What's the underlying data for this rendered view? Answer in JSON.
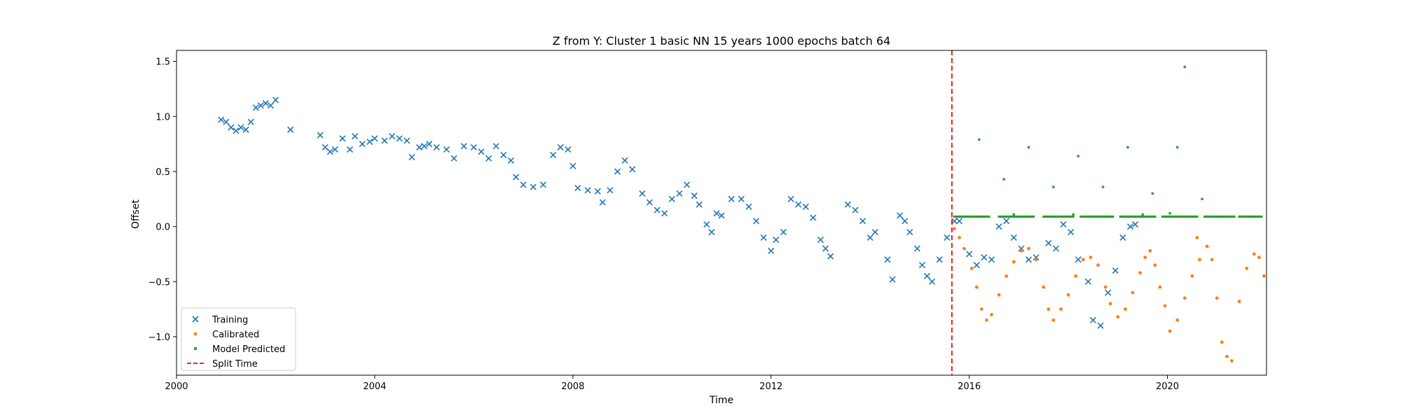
{
  "chart_data": {
    "type": "scatter",
    "title": "Z from Y: Cluster 1 basic NN 15 years 1000 epochs batch 64",
    "xlabel": "Time",
    "ylabel": "Offset",
    "xlim": [
      2000.0,
      2022.0
    ],
    "ylim": [
      -1.35,
      1.6
    ],
    "x_ticks": [
      2000,
      2004,
      2008,
      2012,
      2016,
      2020
    ],
    "y_ticks": [
      -1.0,
      -0.5,
      0.0,
      0.5,
      1.0,
      1.5
    ],
    "y_tick_labels": [
      "−1.0",
      "−0.5",
      "0.0",
      "0.5",
      "1.0",
      "1.5"
    ],
    "legend_position": "lower-left",
    "split_time": 2015.65,
    "series": [
      {
        "name": "Training",
        "marker": "x",
        "color": "#1f77b4",
        "points": [
          [
            2000.9,
            0.97
          ],
          [
            2001.0,
            0.95
          ],
          [
            2001.1,
            0.9
          ],
          [
            2001.2,
            0.87
          ],
          [
            2001.3,
            0.9
          ],
          [
            2001.4,
            0.88
          ],
          [
            2001.5,
            0.95
          ],
          [
            2001.6,
            1.08
          ],
          [
            2001.7,
            1.1
          ],
          [
            2001.8,
            1.12
          ],
          [
            2001.9,
            1.1
          ],
          [
            2002.0,
            1.15
          ],
          [
            2002.3,
            0.88
          ],
          [
            2002.9,
            0.83
          ],
          [
            2003.0,
            0.72
          ],
          [
            2003.1,
            0.68
          ],
          [
            2003.2,
            0.7
          ],
          [
            2003.35,
            0.8
          ],
          [
            2003.5,
            0.7
          ],
          [
            2003.6,
            0.82
          ],
          [
            2003.75,
            0.75
          ],
          [
            2003.9,
            0.77
          ],
          [
            2004.0,
            0.8
          ],
          [
            2004.2,
            0.78
          ],
          [
            2004.35,
            0.82
          ],
          [
            2004.5,
            0.8
          ],
          [
            2004.65,
            0.78
          ],
          [
            2004.75,
            0.63
          ],
          [
            2004.9,
            0.72
          ],
          [
            2005.0,
            0.73
          ],
          [
            2005.1,
            0.75
          ],
          [
            2005.25,
            0.72
          ],
          [
            2005.45,
            0.7
          ],
          [
            2005.6,
            0.62
          ],
          [
            2005.8,
            0.73
          ],
          [
            2006.0,
            0.72
          ],
          [
            2006.15,
            0.68
          ],
          [
            2006.3,
            0.62
          ],
          [
            2006.45,
            0.73
          ],
          [
            2006.6,
            0.65
          ],
          [
            2006.75,
            0.6
          ],
          [
            2006.85,
            0.45
          ],
          [
            2007.0,
            0.38
          ],
          [
            2007.2,
            0.36
          ],
          [
            2007.4,
            0.38
          ],
          [
            2007.6,
            0.65
          ],
          [
            2007.75,
            0.72
          ],
          [
            2007.9,
            0.7
          ],
          [
            2008.0,
            0.55
          ],
          [
            2008.1,
            0.35
          ],
          [
            2008.3,
            0.33
          ],
          [
            2008.5,
            0.32
          ],
          [
            2008.6,
            0.22
          ],
          [
            2008.75,
            0.33
          ],
          [
            2008.9,
            0.5
          ],
          [
            2009.05,
            0.6
          ],
          [
            2009.2,
            0.52
          ],
          [
            2009.4,
            0.3
          ],
          [
            2009.55,
            0.22
          ],
          [
            2009.7,
            0.15
          ],
          [
            2009.85,
            0.12
          ],
          [
            2010.0,
            0.25
          ],
          [
            2010.15,
            0.3
          ],
          [
            2010.3,
            0.38
          ],
          [
            2010.45,
            0.28
          ],
          [
            2010.55,
            0.2
          ],
          [
            2010.7,
            0.02
          ],
          [
            2010.8,
            -0.05
          ],
          [
            2010.9,
            0.12
          ],
          [
            2011.0,
            0.1
          ],
          [
            2011.2,
            0.25
          ],
          [
            2011.4,
            0.25
          ],
          [
            2011.55,
            0.18
          ],
          [
            2011.7,
            0.05
          ],
          [
            2011.85,
            -0.1
          ],
          [
            2012.0,
            -0.22
          ],
          [
            2012.1,
            -0.12
          ],
          [
            2012.25,
            -0.05
          ],
          [
            2012.4,
            0.25
          ],
          [
            2012.55,
            0.2
          ],
          [
            2012.7,
            0.18
          ],
          [
            2012.85,
            0.08
          ],
          [
            2013.0,
            -0.12
          ],
          [
            2013.1,
            -0.2
          ],
          [
            2013.2,
            -0.27
          ],
          [
            2013.55,
            0.2
          ],
          [
            2013.7,
            0.15
          ],
          [
            2013.85,
            0.05
          ],
          [
            2014.0,
            -0.1
          ],
          [
            2014.1,
            -0.05
          ],
          [
            2014.35,
            -0.3
          ],
          [
            2014.45,
            -0.48
          ],
          [
            2014.6,
            0.1
          ],
          [
            2014.7,
            0.05
          ],
          [
            2014.8,
            -0.05
          ],
          [
            2014.95,
            -0.2
          ],
          [
            2015.05,
            -0.35
          ],
          [
            2015.15,
            -0.45
          ],
          [
            2015.25,
            -0.5
          ],
          [
            2015.4,
            -0.3
          ],
          [
            2015.55,
            -0.1
          ],
          [
            2015.7,
            0.05
          ],
          [
            2015.8,
            0.05
          ],
          [
            2016.0,
            -0.25
          ],
          [
            2016.15,
            -0.35
          ],
          [
            2016.3,
            -0.28
          ],
          [
            2016.45,
            -0.3
          ],
          [
            2016.6,
            0.0
          ],
          [
            2016.75,
            0.05
          ],
          [
            2016.9,
            -0.1
          ],
          [
            2017.05,
            -0.2
          ],
          [
            2017.2,
            -0.3
          ],
          [
            2017.35,
            -0.28
          ],
          [
            2017.6,
            -0.15
          ],
          [
            2017.75,
            -0.2
          ],
          [
            2017.9,
            0.02
          ],
          [
            2018.05,
            -0.05
          ],
          [
            2018.2,
            -0.3
          ],
          [
            2018.4,
            -0.5
          ],
          [
            2018.5,
            -0.85
          ],
          [
            2018.65,
            -0.9
          ],
          [
            2018.8,
            -0.6
          ],
          [
            2018.95,
            -0.4
          ],
          [
            2019.1,
            -0.1
          ],
          [
            2019.25,
            0.0
          ],
          [
            2019.35,
            0.02
          ]
        ]
      },
      {
        "name": "Calibrated",
        "marker": "point",
        "color": "#ff7f0e",
        "points": [
          [
            2015.7,
            -0.02
          ],
          [
            2015.8,
            -0.1
          ],
          [
            2015.9,
            -0.2
          ],
          [
            2016.05,
            -0.38
          ],
          [
            2016.15,
            -0.55
          ],
          [
            2016.25,
            -0.75
          ],
          [
            2016.35,
            -0.85
          ],
          [
            2016.45,
            -0.8
          ],
          [
            2016.6,
            -0.62
          ],
          [
            2016.75,
            -0.45
          ],
          [
            2016.9,
            -0.32
          ],
          [
            2017.05,
            -0.22
          ],
          [
            2017.2,
            -0.2
          ],
          [
            2017.35,
            -0.3
          ],
          [
            2017.5,
            -0.55
          ],
          [
            2017.6,
            -0.75
          ],
          [
            2017.7,
            -0.85
          ],
          [
            2017.85,
            -0.75
          ],
          [
            2018.0,
            -0.62
          ],
          [
            2018.15,
            -0.45
          ],
          [
            2018.3,
            -0.3
          ],
          [
            2018.45,
            -0.28
          ],
          [
            2018.6,
            -0.35
          ],
          [
            2018.75,
            -0.55
          ],
          [
            2018.85,
            -0.7
          ],
          [
            2019.0,
            -0.82
          ],
          [
            2019.15,
            -0.75
          ],
          [
            2019.3,
            -0.6
          ],
          [
            2019.45,
            -0.42
          ],
          [
            2019.55,
            -0.28
          ],
          [
            2019.65,
            -0.22
          ],
          [
            2019.75,
            -0.35
          ],
          [
            2019.85,
            -0.55
          ],
          [
            2019.95,
            -0.72
          ],
          [
            2020.05,
            -0.95
          ],
          [
            2020.2,
            -0.85
          ],
          [
            2020.35,
            -0.65
          ],
          [
            2020.5,
            -0.45
          ],
          [
            2020.65,
            -0.3
          ],
          [
            2020.8,
            -0.18
          ],
          [
            2020.9,
            -0.3
          ],
          [
            2021.0,
            -0.65
          ],
          [
            2021.1,
            -1.05
          ],
          [
            2021.2,
            -1.18
          ],
          [
            2021.3,
            -1.22
          ],
          [
            2021.45,
            -0.68
          ],
          [
            2021.6,
            -0.38
          ],
          [
            2021.75,
            -0.25
          ],
          [
            2021.85,
            -0.28
          ],
          [
            2021.95,
            -0.45
          ],
          [
            2020.6,
            -0.1
          ]
        ]
      },
      {
        "name": "Model Predicted",
        "marker": "square",
        "color": "#2ca02c",
        "baseline": 0.09,
        "baseline_ranges": [
          [
            2015.7,
            2016.4
          ],
          [
            2016.6,
            2017.3
          ],
          [
            2017.5,
            2018.1
          ],
          [
            2018.25,
            2018.9
          ],
          [
            2019.05,
            2019.75
          ],
          [
            2019.9,
            2020.6
          ],
          [
            2020.75,
            2021.35
          ],
          [
            2021.45,
            2021.9
          ]
        ],
        "points": [
          [
            2016.2,
            0.79
          ],
          [
            2016.7,
            0.43
          ],
          [
            2017.2,
            0.72
          ],
          [
            2017.7,
            0.36
          ],
          [
            2018.2,
            0.64
          ],
          [
            2018.7,
            0.36
          ],
          [
            2019.2,
            0.72
          ],
          [
            2019.7,
            0.3
          ],
          [
            2020.2,
            0.72
          ],
          [
            2020.35,
            1.45
          ],
          [
            2020.7,
            0.25
          ],
          [
            2016.9,
            0.11
          ],
          [
            2018.1,
            0.11
          ],
          [
            2019.5,
            0.11
          ],
          [
            2020.05,
            0.12
          ]
        ]
      },
      {
        "name": "Split Time",
        "marker": "dashed-line",
        "color": "#ff0000"
      }
    ]
  }
}
